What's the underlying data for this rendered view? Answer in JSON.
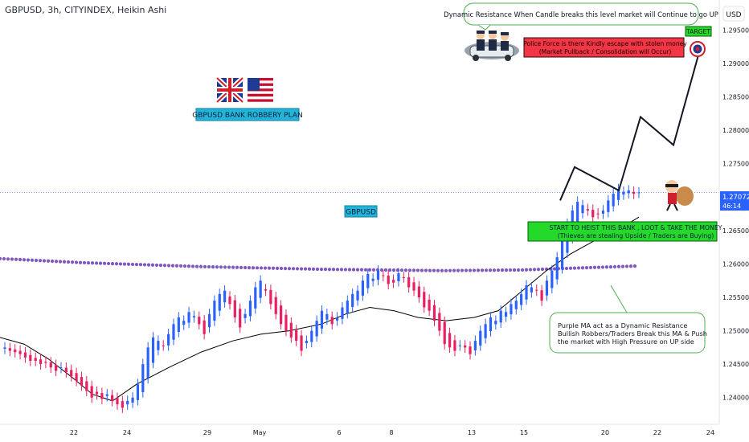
{
  "header": {
    "symbol_info": "GBPUSD, 3h, CITYINDEX, Heikin Ashi"
  },
  "currency_button": "USD",
  "price_tag": {
    "price": "1.27072",
    "countdown": "46:14"
  },
  "annotations": {
    "plan_title": "GBPUSD BANK ROBBERY PLAN",
    "symbol_label": "GBPUSD",
    "resistance_note": "Dynamic Resistance When Candle breaks this level market will Continue to go UP",
    "police_note": [
      "Police Force is there Kindly escape with stolen money",
      "(Market Pullback / Consolidation will Occur)"
    ],
    "target_label": "TARGET",
    "entry_note": [
      "START TO HEIST THIS BANK , LOOT & TAKE THE MONEY",
      "(Thieves are stealing Upside / Traders are Buying)"
    ],
    "ma_note": [
      "Purple MA act as a Dynamic Resistance",
      "Bullish Robbers/Traders Break this MA & Push",
      "the market with High Pressure on UP side"
    ]
  },
  "colors": {
    "bull": "#2962ff",
    "bear": "#e91e63",
    "ma_purple": "#7e57c2",
    "ma_black": "#000000",
    "green_box": "#25d92b",
    "red_box": "#f23645"
  },
  "chart_data": {
    "type": "line",
    "price_axis": {
      "ylim": [
        1.236,
        1.2995
      ],
      "ticks": [
        1.24,
        1.245,
        1.25,
        1.255,
        1.26,
        1.265,
        1.27,
        1.275,
        1.28,
        1.285,
        1.29,
        1.295
      ],
      "tick_labels": [
        "1.24000",
        "1.24500",
        "1.25000",
        "1.25500",
        "1.26000",
        "1.26500",
        "1.27000",
        "1.27500",
        "1.28000",
        "1.28500",
        "1.29000",
        "1.29500"
      ]
    },
    "time_axis": {
      "tick_labels": [
        "22",
        "24",
        "29",
        "May",
        "6",
        "8",
        "13",
        "15",
        "20",
        "22",
        "24"
      ]
    },
    "current_price": 1.27072,
    "candle_closes": [
      1.2475,
      1.247,
      1.2468,
      1.2465,
      1.246,
      1.2455,
      1.2455,
      1.245,
      1.2452,
      1.2445,
      1.244,
      1.2445,
      1.2438,
      1.2432,
      1.2425,
      1.2418,
      1.241,
      1.24,
      1.2405,
      1.2398,
      1.2405,
      1.2395,
      1.239,
      1.2385,
      1.2395,
      1.24,
      1.242,
      1.245,
      1.2475,
      1.249,
      1.2485,
      1.2478,
      1.2495,
      1.251,
      1.252,
      1.2515,
      1.2528,
      1.2522,
      1.251,
      1.2495,
      1.2525,
      1.2545,
      1.2555,
      1.256,
      1.254,
      1.252,
      1.2505,
      1.2525,
      1.2545,
      1.2565,
      1.2575,
      1.256,
      1.254,
      1.2525,
      1.251,
      1.25,
      1.249,
      1.2485,
      1.247,
      1.2485,
      1.25,
      1.2515,
      1.253,
      1.2525,
      1.251,
      1.252,
      1.2535,
      1.2545,
      1.2555,
      1.256,
      1.2575,
      1.2585,
      1.2578,
      1.259,
      1.2582,
      1.257,
      1.2572,
      1.2586,
      1.258,
      1.2565,
      1.256,
      1.255,
      1.2535,
      1.253,
      1.2515,
      1.25,
      1.248,
      1.2475,
      1.247,
      1.2478,
      1.2475,
      1.2465,
      1.2485,
      1.25,
      1.251,
      1.252,
      1.2515,
      1.253,
      1.2528,
      1.254,
      1.2545,
      1.2555,
      1.2568,
      1.2565,
      1.256,
      1.2545,
      1.2575,
      1.259,
      1.261,
      1.264,
      1.266,
      1.268,
      1.2693,
      1.2688,
      1.268,
      1.267,
      1.2675,
      1.268,
      1.2695,
      1.2705,
      1.2712,
      1.2708,
      1.271,
      1.2705,
      1.2707
    ],
    "purple_ma": [
      [
        0,
        1.2608
      ],
      [
        100,
        1.2602
      ],
      [
        250,
        1.2596
      ],
      [
        400,
        1.2592
      ],
      [
        550,
        1.259
      ],
      [
        650,
        1.2591
      ],
      [
        720,
        1.2594
      ],
      [
        795,
        1.2597
      ]
    ],
    "black_ma": [
      [
        0,
        1.249
      ],
      [
        30,
        1.248
      ],
      [
        60,
        1.2458
      ],
      [
        90,
        1.243
      ],
      [
        115,
        1.2405
      ],
      [
        140,
        1.2395
      ],
      [
        170,
        1.242
      ],
      [
        210,
        1.2445
      ],
      [
        250,
        1.2468
      ],
      [
        290,
        1.2485
      ],
      [
        325,
        1.2495
      ],
      [
        360,
        1.25
      ],
      [
        400,
        1.251
      ],
      [
        430,
        1.2525
      ],
      [
        460,
        1.2535
      ],
      [
        490,
        1.253
      ],
      [
        520,
        1.252
      ],
      [
        555,
        1.2515
      ],
      [
        590,
        1.252
      ],
      [
        620,
        1.253
      ],
      [
        650,
        1.256
      ],
      [
        680,
        1.259
      ],
      [
        710,
        1.2615
      ],
      [
        740,
        1.2635
      ],
      [
        770,
        1.2652
      ],
      [
        795,
        1.267
      ]
    ],
    "projection": [
      [
        697,
        1.2695
      ],
      [
        715,
        1.2745
      ],
      [
        770,
        1.271
      ],
      [
        797,
        1.282
      ],
      [
        838,
        1.2778
      ],
      [
        873,
        1.293
      ]
    ]
  }
}
